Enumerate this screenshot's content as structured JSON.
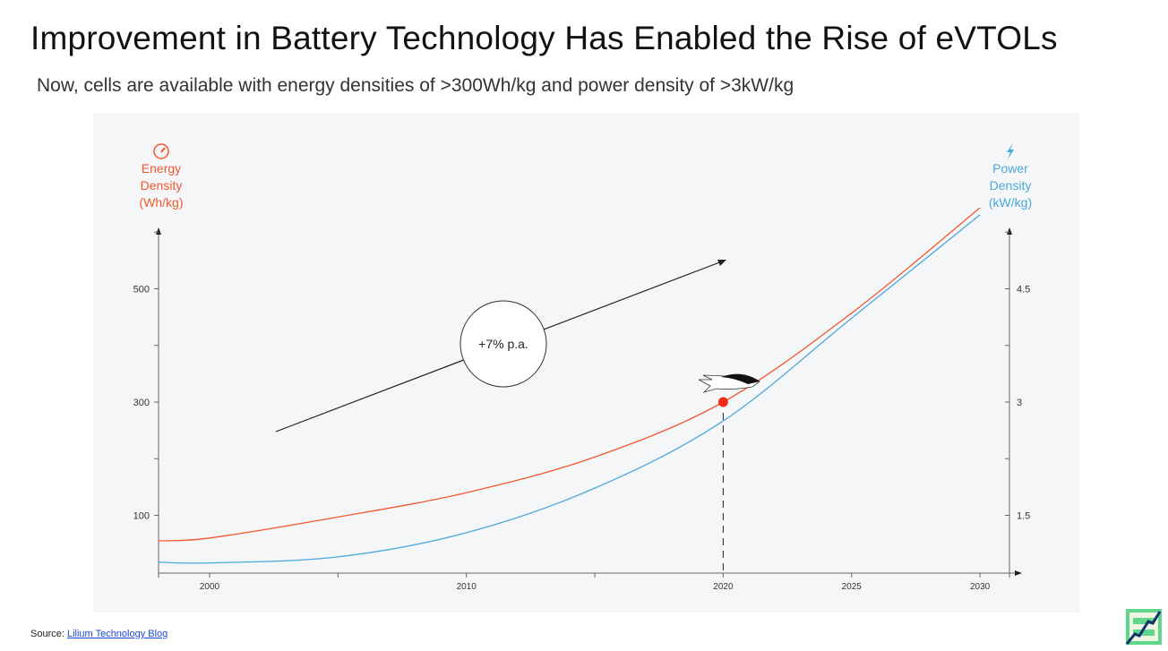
{
  "title": "Improvement in Battery Technology Has Enabled the Rise of eVTOLs",
  "subtitle": "Now, cells are available with energy densities of >300Wh/kg and power density of >3kW/kg",
  "source": {
    "label": "Source:",
    "link": "Lilium Technology Blog"
  },
  "chart_data": {
    "type": "line",
    "xlim": [
      1998,
      2031
    ],
    "x_ticks": [
      2000,
      2010,
      2020,
      2025,
      2030
    ],
    "left_axis": {
      "label": [
        "Energy",
        "Density",
        "(Wh/kg)"
      ],
      "ylim": [
        0,
        650
      ],
      "ticks": [
        100,
        300,
        500
      ],
      "color": "#f2582f",
      "icon": "gauge-icon"
    },
    "right_axis": {
      "label": [
        "Power",
        "Density",
        "(kW/kg)"
      ],
      "ylim": [
        0.3,
        5.5
      ],
      "ticks": [
        1.5,
        3,
        4.5
      ],
      "color": "#4aa8dc",
      "icon": "lightning-icon"
    },
    "series": [
      {
        "name": "Energy Density",
        "axis": "left",
        "color": "#f2582f",
        "x": [
          1998,
          2000,
          2005,
          2010,
          2015,
          2020,
          2025,
          2030
        ],
        "values": [
          55,
          60,
          97,
          140,
          203,
          300,
          457,
          643
        ]
      },
      {
        "name": "Power Density",
        "axis": "right",
        "color": "#4aa8dc",
        "x": [
          1998,
          2000,
          2005,
          2010,
          2015,
          2020,
          2025,
          2030
        ],
        "values": [
          0.88,
          0.87,
          0.95,
          1.27,
          1.86,
          2.75,
          4.11,
          5.48
        ]
      }
    ],
    "marker": {
      "x": 2020,
      "value": 300
    },
    "annotation": "+7% p.a."
  }
}
